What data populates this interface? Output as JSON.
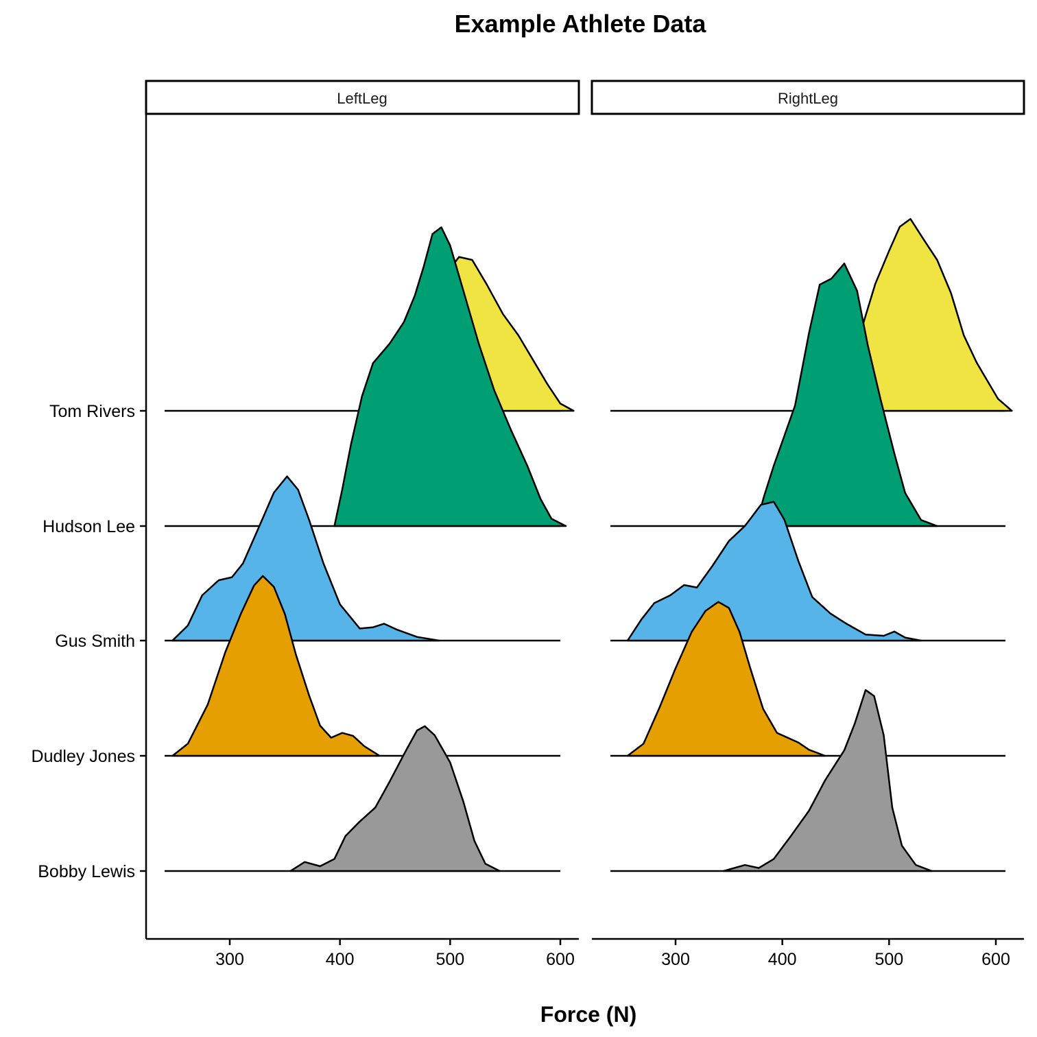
{
  "chart_data": {
    "type": "ridgeline",
    "title": "Example Athlete Data",
    "xlabel": "Force (N)",
    "ylabel": "",
    "x_ticks": [
      300,
      400,
      500,
      600
    ],
    "x_range": [
      240,
      610
    ],
    "facets": [
      "LeftLeg",
      "RightLeg"
    ],
    "athletes": [
      "Bobby Lewis",
      "Dudley Jones",
      "Gus Smith",
      "Hudson Lee",
      "Tom Rivers"
    ],
    "colors": {
      "Bobby Lewis": "#999999",
      "Dudley Jones": "#E69F00",
      "Gus Smith": "#56B4E9",
      "Hudson Lee": "#009E73",
      "Tom Rivers": "#F0E442"
    },
    "densities": {
      "LeftLeg": {
        "Bobby Lewis": [
          [
            355,
            0
          ],
          [
            368,
            0.15
          ],
          [
            382,
            0.08
          ],
          [
            395,
            0.2
          ],
          [
            405,
            0.58
          ],
          [
            418,
            0.82
          ],
          [
            432,
            1.05
          ],
          [
            445,
            1.48
          ],
          [
            460,
            2.0
          ],
          [
            470,
            2.33
          ],
          [
            477,
            2.4
          ],
          [
            486,
            2.25
          ],
          [
            500,
            1.8
          ],
          [
            512,
            1.15
          ],
          [
            522,
            0.5
          ],
          [
            532,
            0.12
          ],
          [
            545,
            0
          ]
        ],
        "Dudley Jones": [
          [
            248,
            0
          ],
          [
            262,
            0.2
          ],
          [
            280,
            0.85
          ],
          [
            296,
            1.72
          ],
          [
            310,
            2.35
          ],
          [
            322,
            2.82
          ],
          [
            330,
            2.98
          ],
          [
            340,
            2.8
          ],
          [
            350,
            2.35
          ],
          [
            360,
            1.68
          ],
          [
            372,
            1.0
          ],
          [
            382,
            0.5
          ],
          [
            392,
            0.3
          ],
          [
            402,
            0.38
          ],
          [
            412,
            0.33
          ],
          [
            422,
            0.16
          ],
          [
            436,
            0
          ]
        ],
        "Gus Smith": [
          [
            248,
            0
          ],
          [
            262,
            0.25
          ],
          [
            275,
            0.75
          ],
          [
            290,
            1.0
          ],
          [
            302,
            1.05
          ],
          [
            312,
            1.28
          ],
          [
            325,
            1.82
          ],
          [
            340,
            2.45
          ],
          [
            352,
            2.72
          ],
          [
            362,
            2.5
          ],
          [
            372,
            2.0
          ],
          [
            385,
            1.28
          ],
          [
            400,
            0.6
          ],
          [
            418,
            0.2
          ],
          [
            430,
            0.22
          ],
          [
            440,
            0.28
          ],
          [
            452,
            0.18
          ],
          [
            470,
            0.06
          ],
          [
            490,
            0
          ]
        ],
        "Hudson Lee": [
          [
            395,
            0
          ],
          [
            402,
            0.6
          ],
          [
            410,
            1.35
          ],
          [
            420,
            2.15
          ],
          [
            430,
            2.7
          ],
          [
            445,
            3.02
          ],
          [
            458,
            3.38
          ],
          [
            468,
            3.82
          ],
          [
            476,
            4.3
          ],
          [
            484,
            4.84
          ],
          [
            492,
            4.95
          ],
          [
            500,
            4.65
          ],
          [
            512,
            3.9
          ],
          [
            526,
            3.02
          ],
          [
            540,
            2.25
          ],
          [
            555,
            1.6
          ],
          [
            570,
            1.0
          ],
          [
            582,
            0.45
          ],
          [
            592,
            0.12
          ],
          [
            605,
            0
          ]
        ],
        "Tom Rivers": [
          [
            432,
            0
          ],
          [
            440,
            0.38
          ],
          [
            450,
            0.55
          ],
          [
            460,
            0.95
          ],
          [
            470,
            1.55
          ],
          [
            480,
            2.0
          ],
          [
            490,
            2.15
          ],
          [
            500,
            2.35
          ],
          [
            508,
            2.55
          ],
          [
            520,
            2.5
          ],
          [
            533,
            2.1
          ],
          [
            548,
            1.6
          ],
          [
            562,
            1.25
          ],
          [
            575,
            0.85
          ],
          [
            588,
            0.45
          ],
          [
            600,
            0.12
          ],
          [
            612,
            0
          ]
        ]
      },
      "RightLeg": {
        "Bobby Lewis": [
          [
            345,
            0
          ],
          [
            365,
            0.1
          ],
          [
            378,
            0.05
          ],
          [
            392,
            0.2
          ],
          [
            408,
            0.58
          ],
          [
            425,
            1.0
          ],
          [
            440,
            1.5
          ],
          [
            450,
            1.78
          ],
          [
            458,
            2.0
          ],
          [
            468,
            2.45
          ],
          [
            478,
            3.0
          ],
          [
            486,
            2.9
          ],
          [
            495,
            2.25
          ],
          [
            503,
            1.05
          ],
          [
            512,
            0.42
          ],
          [
            525,
            0.1
          ],
          [
            540,
            0
          ]
        ],
        "Dudley Jones": [
          [
            255,
            0
          ],
          [
            270,
            0.2
          ],
          [
            285,
            0.8
          ],
          [
            300,
            1.45
          ],
          [
            315,
            2.05
          ],
          [
            328,
            2.4
          ],
          [
            340,
            2.55
          ],
          [
            350,
            2.45
          ],
          [
            360,
            2.05
          ],
          [
            370,
            1.45
          ],
          [
            382,
            0.78
          ],
          [
            395,
            0.38
          ],
          [
            405,
            0.3
          ],
          [
            415,
            0.22
          ],
          [
            425,
            0.1
          ],
          [
            440,
            0
          ]
        ],
        "Gus Smith": [
          [
            255,
            0
          ],
          [
            268,
            0.35
          ],
          [
            280,
            0.62
          ],
          [
            295,
            0.75
          ],
          [
            308,
            0.92
          ],
          [
            320,
            0.88
          ],
          [
            335,
            1.25
          ],
          [
            350,
            1.65
          ],
          [
            365,
            1.9
          ],
          [
            380,
            2.25
          ],
          [
            392,
            2.3
          ],
          [
            402,
            2.0
          ],
          [
            415,
            1.32
          ],
          [
            428,
            0.72
          ],
          [
            445,
            0.45
          ],
          [
            460,
            0.28
          ],
          [
            478,
            0.1
          ],
          [
            495,
            0.08
          ],
          [
            505,
            0.15
          ],
          [
            515,
            0.05
          ],
          [
            530,
            0
          ]
        ],
        "Hudson Lee": [
          [
            375,
            0
          ],
          [
            383,
            0.5
          ],
          [
            392,
            1.0
          ],
          [
            402,
            1.5
          ],
          [
            412,
            2.0
          ],
          [
            425,
            3.2
          ],
          [
            435,
            4.0
          ],
          [
            446,
            4.1
          ],
          [
            458,
            4.35
          ],
          [
            470,
            3.9
          ],
          [
            480,
            3.0
          ],
          [
            492,
            2.1
          ],
          [
            505,
            1.2
          ],
          [
            515,
            0.55
          ],
          [
            530,
            0.1
          ],
          [
            545,
            0
          ]
        ],
        "Tom Rivers": [
          [
            446,
            0
          ],
          [
            455,
            0.5
          ],
          [
            465,
            0.9
          ],
          [
            475,
            1.4
          ],
          [
            487,
            2.1
          ],
          [
            500,
            2.65
          ],
          [
            510,
            3.05
          ],
          [
            520,
            3.18
          ],
          [
            532,
            2.85
          ],
          [
            545,
            2.5
          ],
          [
            558,
            1.95
          ],
          [
            570,
            1.25
          ],
          [
            582,
            0.8
          ],
          [
            592,
            0.5
          ],
          [
            602,
            0.2
          ],
          [
            615,
            0
          ]
        ]
      }
    }
  }
}
